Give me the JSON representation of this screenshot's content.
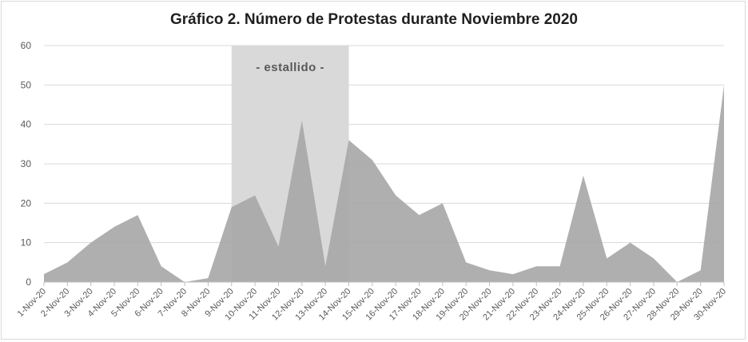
{
  "chart_data": {
    "type": "area",
    "title": "Gráfico 2. Número de Protestas durante Noviembre 2020",
    "xlabel": "",
    "ylabel": "",
    "ylim": [
      0,
      60
    ],
    "yticks": [
      0,
      10,
      20,
      30,
      40,
      50,
      60
    ],
    "grid": true,
    "categories": [
      "1-Nov-20",
      "2-Nov-20",
      "3-Nov-20",
      "4-Nov-20",
      "5-Nov-20",
      "6-Nov-20",
      "7-Nov-20",
      "8-Nov-20",
      "9-Nov-20",
      "10-Nov-20",
      "11-Nov-20",
      "12-Nov-20",
      "13-Nov-20",
      "14-Nov-20",
      "15-Nov-20",
      "16-Nov-20",
      "17-Nov-20",
      "18-Nov-20",
      "19-Nov-20",
      "20-Nov-20",
      "21-Nov-20",
      "22-Nov-20",
      "23-Nov-20",
      "24-Nov-20",
      "25-Nov-20",
      "26-Nov-20",
      "27-Nov-20",
      "28-Nov-20",
      "29-Nov-20",
      "30-Nov-20"
    ],
    "values": [
      2,
      5,
      10,
      14,
      17,
      4,
      0,
      1,
      19,
      22,
      9,
      41,
      4,
      36,
      31,
      22,
      17,
      20,
      5,
      3,
      2,
      4,
      4,
      27,
      6,
      10,
      6,
      0,
      3,
      50
    ],
    "highlight": {
      "label": "- estallido -",
      "from": "9-Nov-20",
      "to": "14-Nov-20"
    },
    "colors": {
      "area": "#a6a6a6",
      "highlight": "#d9d9d9",
      "grid": "#d9d9d9",
      "axis": "#bfbfbf"
    }
  }
}
